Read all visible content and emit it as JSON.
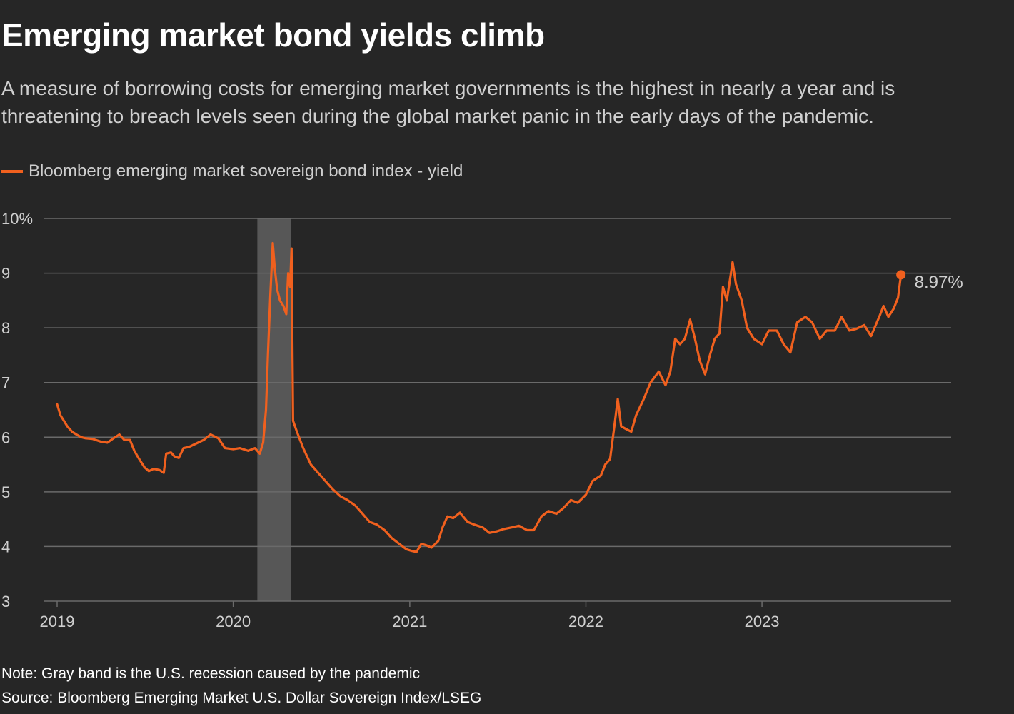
{
  "header": {
    "title": "Emerging market bond yields climb",
    "subtitle": "A measure of borrowing costs for emerging market governments is the highest in nearly a year and is threatening to breach levels seen during the global market panic in the early days of the pandemic."
  },
  "footer": {
    "note": "Note: Gray band is the U.S. recession caused by the pandemic",
    "source": "Source: Bloomberg Emerging Market U.S. Dollar Sovereign Index/LSEG"
  },
  "colors": {
    "background": "#262626",
    "line": "#f0601e",
    "band": "#575757",
    "grid": "#6a6a6a",
    "text": "#ffffff",
    "muted": "#cfcfcf"
  },
  "chart_data": {
    "type": "line",
    "xlabel": "",
    "ylabel": "",
    "ylim": [
      3,
      10
    ],
    "xlim": [
      "2019-01-01",
      "2023-12-31"
    ],
    "y_ticks": [
      {
        "value": 10,
        "label": "10%"
      },
      {
        "value": 9,
        "label": "9"
      },
      {
        "value": 8,
        "label": "8"
      },
      {
        "value": 7,
        "label": "7"
      },
      {
        "value": 6,
        "label": "6"
      },
      {
        "value": 5,
        "label": "5"
      },
      {
        "value": 4,
        "label": "4"
      },
      {
        "value": 3,
        "label": "3"
      }
    ],
    "x_ticks": [
      {
        "value": "2019-01-01",
        "label": "2019"
      },
      {
        "value": "2020-01-01",
        "label": "2020"
      },
      {
        "value": "2021-01-01",
        "label": "2021"
      },
      {
        "value": "2022-01-01",
        "label": "2022"
      },
      {
        "value": "2023-01-01",
        "label": "2023"
      }
    ],
    "grid": true,
    "legend": "top-left",
    "shaded_band": {
      "start": "2020-02-20",
      "end": "2020-04-30"
    },
    "series": [
      {
        "name": "Bloomberg emerging market sovereign bond index - yield",
        "end_label": "8.97%",
        "points": [
          [
            "2019-01-01",
            6.6
          ],
          [
            "2019-01-08",
            6.4
          ],
          [
            "2019-01-15",
            6.3
          ],
          [
            "2019-01-22",
            6.2
          ],
          [
            "2019-02-01",
            6.1
          ],
          [
            "2019-02-10",
            6.05
          ],
          [
            "2019-02-20",
            6.0
          ],
          [
            "2019-03-01",
            5.98
          ],
          [
            "2019-03-15",
            5.97
          ],
          [
            "2019-04-01",
            5.92
          ],
          [
            "2019-04-15",
            5.9
          ],
          [
            "2019-05-01",
            6.0
          ],
          [
            "2019-05-10",
            6.05
          ],
          [
            "2019-05-20",
            5.95
          ],
          [
            "2019-06-01",
            5.95
          ],
          [
            "2019-06-10",
            5.75
          ],
          [
            "2019-06-20",
            5.6
          ],
          [
            "2019-07-01",
            5.45
          ],
          [
            "2019-07-10",
            5.38
          ],
          [
            "2019-07-20",
            5.42
          ],
          [
            "2019-08-01",
            5.4
          ],
          [
            "2019-08-10",
            5.35
          ],
          [
            "2019-08-15",
            5.7
          ],
          [
            "2019-08-25",
            5.72
          ],
          [
            "2019-09-01",
            5.65
          ],
          [
            "2019-09-10",
            5.62
          ],
          [
            "2019-09-20",
            5.8
          ],
          [
            "2019-10-01",
            5.82
          ],
          [
            "2019-10-15",
            5.88
          ],
          [
            "2019-11-01",
            5.95
          ],
          [
            "2019-11-15",
            6.05
          ],
          [
            "2019-12-01",
            5.98
          ],
          [
            "2019-12-15",
            5.8
          ],
          [
            "2020-01-01",
            5.78
          ],
          [
            "2020-01-15",
            5.8
          ],
          [
            "2020-02-01",
            5.75
          ],
          [
            "2020-02-15",
            5.8
          ],
          [
            "2020-02-25",
            5.7
          ],
          [
            "2020-03-03",
            5.9
          ],
          [
            "2020-03-09",
            6.5
          ],
          [
            "2020-03-13",
            7.5
          ],
          [
            "2020-03-18",
            8.6
          ],
          [
            "2020-03-23",
            9.55
          ],
          [
            "2020-03-27",
            9.1
          ],
          [
            "2020-04-01",
            8.7
          ],
          [
            "2020-04-07",
            8.5
          ],
          [
            "2020-04-14",
            8.4
          ],
          [
            "2020-04-20",
            8.25
          ],
          [
            "2020-04-24",
            9.0
          ],
          [
            "2020-04-28",
            8.75
          ],
          [
            "2020-05-01",
            9.45
          ],
          [
            "2020-05-04",
            6.3
          ],
          [
            "2020-05-12",
            6.1
          ],
          [
            "2020-05-25",
            5.8
          ],
          [
            "2020-06-10",
            5.5
          ],
          [
            "2020-06-25",
            5.35
          ],
          [
            "2020-07-10",
            5.2
          ],
          [
            "2020-07-25",
            5.05
          ],
          [
            "2020-08-10",
            4.92
          ],
          [
            "2020-08-25",
            4.85
          ],
          [
            "2020-09-10",
            4.75
          ],
          [
            "2020-09-25",
            4.6
          ],
          [
            "2020-10-10",
            4.45
          ],
          [
            "2020-10-25",
            4.4
          ],
          [
            "2020-11-10",
            4.3
          ],
          [
            "2020-11-25",
            4.15
          ],
          [
            "2020-12-10",
            4.05
          ],
          [
            "2020-12-25",
            3.95
          ],
          [
            "2021-01-05",
            3.92
          ],
          [
            "2021-01-15",
            3.9
          ],
          [
            "2021-01-25",
            4.05
          ],
          [
            "2021-02-05",
            4.02
          ],
          [
            "2021-02-15",
            3.98
          ],
          [
            "2021-03-01",
            4.1
          ],
          [
            "2021-03-10",
            4.35
          ],
          [
            "2021-03-20",
            4.55
          ],
          [
            "2021-04-01",
            4.52
          ],
          [
            "2021-04-15",
            4.62
          ],
          [
            "2021-05-01",
            4.45
          ],
          [
            "2021-05-15",
            4.4
          ],
          [
            "2021-06-01",
            4.35
          ],
          [
            "2021-06-15",
            4.25
          ],
          [
            "2021-07-01",
            4.28
          ],
          [
            "2021-07-15",
            4.32
          ],
          [
            "2021-08-01",
            4.35
          ],
          [
            "2021-08-15",
            4.38
          ],
          [
            "2021-09-01",
            4.3
          ],
          [
            "2021-09-15",
            4.3
          ],
          [
            "2021-10-01",
            4.55
          ],
          [
            "2021-10-15",
            4.65
          ],
          [
            "2021-11-01",
            4.6
          ],
          [
            "2021-11-15",
            4.7
          ],
          [
            "2021-12-01",
            4.85
          ],
          [
            "2021-12-15",
            4.8
          ],
          [
            "2022-01-01",
            4.95
          ],
          [
            "2022-01-15",
            5.2
          ],
          [
            "2022-02-01",
            5.3
          ],
          [
            "2022-02-10",
            5.5
          ],
          [
            "2022-02-20",
            5.6
          ],
          [
            "2022-03-01",
            6.2
          ],
          [
            "2022-03-08",
            6.7
          ],
          [
            "2022-03-15",
            6.2
          ],
          [
            "2022-03-25",
            6.15
          ],
          [
            "2022-04-05",
            6.1
          ],
          [
            "2022-04-15",
            6.4
          ],
          [
            "2022-05-01",
            6.7
          ],
          [
            "2022-05-15",
            7.0
          ],
          [
            "2022-06-01",
            7.2
          ],
          [
            "2022-06-15",
            6.95
          ],
          [
            "2022-06-25",
            7.2
          ],
          [
            "2022-07-05",
            7.8
          ],
          [
            "2022-07-15",
            7.7
          ],
          [
            "2022-07-25",
            7.8
          ],
          [
            "2022-08-05",
            8.15
          ],
          [
            "2022-08-15",
            7.8
          ],
          [
            "2022-08-25",
            7.4
          ],
          [
            "2022-09-05",
            7.15
          ],
          [
            "2022-09-15",
            7.5
          ],
          [
            "2022-09-25",
            7.8
          ],
          [
            "2022-10-05",
            7.9
          ],
          [
            "2022-10-12",
            8.75
          ],
          [
            "2022-10-20",
            8.5
          ],
          [
            "2022-11-01",
            9.2
          ],
          [
            "2022-11-08",
            8.8
          ],
          [
            "2022-11-20",
            8.5
          ],
          [
            "2022-12-01",
            8.0
          ],
          [
            "2022-12-15",
            7.8
          ],
          [
            "2023-01-01",
            7.7
          ],
          [
            "2023-01-15",
            7.95
          ],
          [
            "2023-02-01",
            7.95
          ],
          [
            "2023-02-15",
            7.7
          ],
          [
            "2023-03-01",
            7.55
          ],
          [
            "2023-03-15",
            8.1
          ],
          [
            "2023-04-01",
            8.2
          ],
          [
            "2023-04-15",
            8.1
          ],
          [
            "2023-05-01",
            7.8
          ],
          [
            "2023-05-15",
            7.95
          ],
          [
            "2023-06-01",
            7.95
          ],
          [
            "2023-06-15",
            8.2
          ],
          [
            "2023-07-01",
            7.95
          ],
          [
            "2023-07-15",
            7.98
          ],
          [
            "2023-08-01",
            8.05
          ],
          [
            "2023-08-15",
            7.85
          ],
          [
            "2023-09-01",
            8.2
          ],
          [
            "2023-09-10",
            8.4
          ],
          [
            "2023-09-20",
            8.2
          ],
          [
            "2023-10-01",
            8.35
          ],
          [
            "2023-10-10",
            8.55
          ],
          [
            "2023-10-16",
            8.97
          ]
        ]
      }
    ]
  }
}
